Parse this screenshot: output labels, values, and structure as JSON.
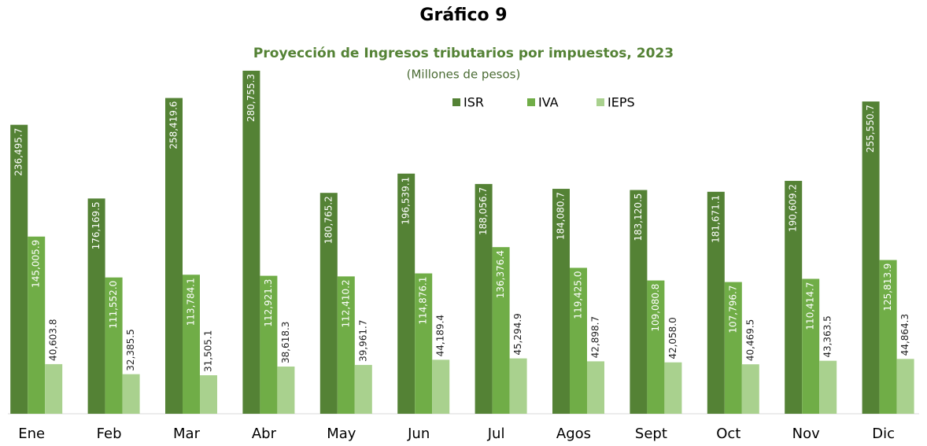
{
  "chart_data": {
    "type": "bar",
    "title": "Gráfico 9",
    "subtitle": "Proyección de Ingresos tributarios por impuestos, 2023",
    "note": "(Millones de pesos)",
    "categories": [
      "Ene",
      "Feb",
      "Mar",
      "Abr",
      "May",
      "Jun",
      "Jul",
      "Agos",
      "Sept",
      "Oct",
      "Nov",
      "Dic"
    ],
    "ylim": [
      0,
      300000
    ],
    "legend": "top",
    "series": [
      {
        "name": "ISR",
        "color": "#548235",
        "values": [
          236495.7,
          176169.5,
          258419.6,
          280755.3,
          180765.2,
          196539.1,
          188056.7,
          184080.7,
          183120.5,
          181671.1,
          190609.2,
          255550.7
        ],
        "value_labels": [
          "236,495.7",
          "176,169.5",
          "258,419.6",
          "280,755.3",
          "180,765.2",
          "196,539.1",
          "188,056.7",
          "184,080.7",
          "183,120.5",
          "181,671.1",
          "190,609.2",
          "255,550.7"
        ]
      },
      {
        "name": "IVA",
        "color": "#70ad47",
        "values": [
          145005.9,
          111552.0,
          113784.1,
          112921.3,
          112410.2,
          114876.1,
          136376.4,
          119425.0,
          109080.8,
          107796.7,
          110414.7,
          125813.9
        ],
        "value_labels": [
          "145,005.9",
          "111,552.0",
          "113,784.1",
          "112,921.3",
          "112,410.2",
          "114,876.1",
          "136,376.4",
          "119,425.0",
          "109,080.8",
          "107,796.7",
          "110,414.7",
          "125,813.9"
        ]
      },
      {
        "name": "IEPS",
        "color": "#a9d18e",
        "values": [
          40603.8,
          32385.5,
          31505.1,
          38618.3,
          39961.7,
          44189.4,
          45294.9,
          42898.7,
          42058.0,
          40469.5,
          43363.5,
          44864.3
        ],
        "value_labels": [
          "40,603.8",
          "32,385.5",
          "31,505.1",
          "38,618.3",
          "39,961.7",
          "44,189.4",
          "45,294.9",
          "42,898.7",
          "42,058.0",
          "40,469.5",
          "43,363.5",
          "44,864.3"
        ]
      }
    ]
  }
}
